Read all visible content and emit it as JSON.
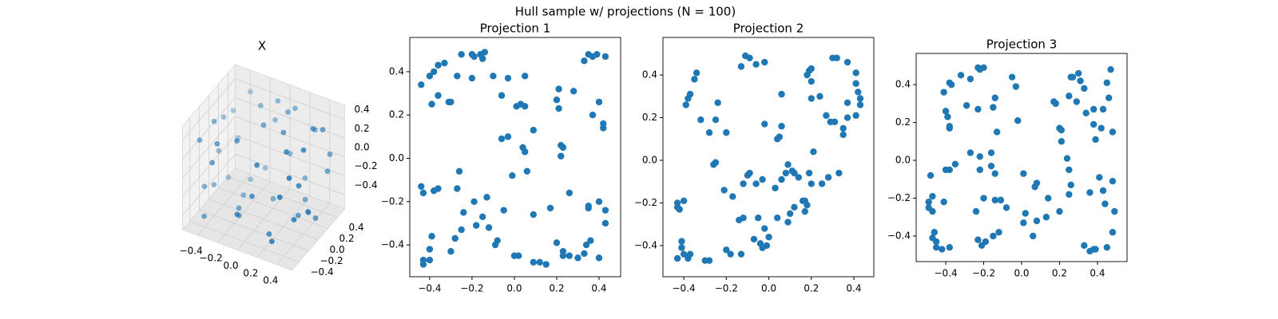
{
  "title": "Hull sample w/ projections (N = 100)",
  "chart_data": [
    {
      "type": "scatter3d",
      "title": "X",
      "color": "#1f77b4",
      "x": [
        -0.45,
        0.45,
        0.2,
        -0.3,
        0.1,
        -0.2,
        0.45,
        -0.45,
        0.3,
        -0.1,
        0.0,
        0.3,
        -0.45,
        0.45,
        -0.35,
        0.15,
        0.4,
        -0.4,
        0.25,
        -0.25,
        0.45,
        -0.45,
        0.05,
        -0.05,
        0.35,
        -0.15,
        0.45,
        -0.45,
        0.2,
        -0.3,
        0.1,
        -0.2,
        0.45,
        -0.45,
        0.0,
        0.3,
        -0.1,
        0.45,
        -0.38,
        0.38,
        -0.45,
        0.2,
        -0.05,
        0.45,
        -0.25,
        0.1,
        -0.45,
        0.35,
        -0.15,
        0.45
      ],
      "y": [
        0.1,
        -0.2,
        0.45,
        -0.45,
        0.3,
        -0.1,
        0.3,
        -0.3,
        -0.45,
        0.45,
        0.0,
        0.1,
        0.4,
        0.0,
        0.45,
        -0.45,
        0.2,
        -0.2,
        0.35,
        0.1,
        -0.4,
        0.0,
        0.45,
        -0.45,
        -0.25,
        0.25,
        0.4,
        -0.4,
        -0.3,
        0.35,
        -0.45,
        0.45,
        -0.1,
        0.2,
        0.2,
        0.45,
        -0.35,
        0.15,
        -0.45,
        -0.45,
        0.3,
        0.0,
        0.4,
        -0.3,
        -0.45,
        0.45,
        -0.1,
        0.2,
        -0.2,
        0.45
      ],
      "z": [
        0.3,
        0.1,
        -0.3,
        0.2,
        0.45,
        -0.45,
        0.4,
        -0.2,
        -0.4,
        0.2,
        0.45,
        -0.45,
        -0.1,
        -0.3,
        0.4,
        0.35,
        0.45,
        0.45,
        -0.45,
        -0.45,
        0.3,
        0.0,
        -0.1,
        -0.25,
        0.45,
        0.45,
        -0.1,
        0.35,
        -0.45,
        -0.45,
        0.0,
        -0.35,
        0.42,
        -0.4,
        -0.45,
        0.25,
        0.45,
        -0.45,
        -0.4,
        0.1,
        0.25,
        0.45,
        0.45,
        -0.2,
        0.42,
        0.4,
        -0.3,
        -0.45,
        -0.45,
        0.05
      ],
      "xlim": [
        -0.55,
        0.55
      ],
      "ylim": [
        -0.55,
        0.55
      ],
      "zlim": [
        -0.55,
        0.55
      ],
      "xticks": [
        {
          "value": -0.4,
          "label": "−0.4"
        },
        {
          "value": -0.2,
          "label": "−0.2"
        },
        {
          "value": 0,
          "label": "0.0"
        },
        0.2,
        0.4
      ],
      "yticks": [
        {
          "value": -0.4,
          "label": "−0.4"
        },
        {
          "value": -0.2,
          "label": "−0.2"
        },
        {
          "value": 0,
          "label": "0.0"
        },
        0.2,
        0.4
      ],
      "zticks": [
        {
          "value": -0.4,
          "label": "−0.4"
        },
        {
          "value": -0.2,
          "label": "−0.2"
        },
        {
          "value": 0,
          "label": "0.0"
        },
        0.2,
        0.4
      ]
    },
    {
      "type": "scatter",
      "title": "Projection 1",
      "color": "#1f77b4",
      "x": [
        -0.44,
        -0.4,
        -0.38,
        -0.36,
        -0.33,
        -0.39,
        -0.36,
        -0.31,
        -0.3,
        -0.27,
        -0.25,
        -0.2,
        -0.19,
        -0.16,
        -0.14,
        -0.15,
        -0.2,
        -0.1,
        -0.06,
        -0.03,
        0.05,
        0.03,
        0.01,
        0.05,
        0.09,
        0.04,
        0.05,
        -0.03,
        -0.06,
        -0.01,
        0.06,
        0.2,
        0.21,
        0.21,
        0.22,
        0.23,
        0.22,
        0.28,
        0.35,
        0.33,
        0.37,
        0.39,
        0.43,
        0.37,
        0.4,
        0.42,
        0.42,
        -0.44,
        -0.43,
        -0.38,
        -0.36,
        -0.27,
        -0.24,
        -0.19,
        -0.15,
        -0.05,
        -0.13,
        -0.12,
        -0.18,
        -0.25,
        -0.28,
        -0.26,
        -0.39,
        -0.4,
        -0.43,
        -0.43,
        -0.4,
        -0.3,
        -0.08,
        -0.09,
        0.0,
        0.02,
        0.09,
        0.12,
        0.15,
        0.09,
        0.2,
        0.17,
        0.26,
        0.26,
        0.3,
        0.34,
        0.36,
        0.35,
        0.35,
        0.4,
        0.43,
        0.43,
        0.4,
        0.33,
        0.23,
        0.23
      ],
      "y": [
        0.34,
        0.38,
        0.4,
        0.43,
        0.44,
        0.25,
        0.29,
        0.26,
        0.26,
        0.38,
        0.48,
        0.48,
        0.47,
        0.48,
        0.49,
        0.46,
        0.37,
        0.38,
        0.29,
        0.37,
        0.38,
        0.25,
        0.24,
        0.24,
        0.13,
        0.05,
        0.03,
        0.1,
        0.09,
        -0.08,
        -0.06,
        0.27,
        0.23,
        0.32,
        0.06,
        0.05,
        0.01,
        0.31,
        0.48,
        0.45,
        0.47,
        0.48,
        0.47,
        0.2,
        0.26,
        0.14,
        0.16,
        -0.13,
        -0.16,
        -0.15,
        -0.14,
        -0.14,
        -0.25,
        -0.2,
        -0.27,
        -0.24,
        -0.18,
        -0.32,
        -0.31,
        -0.33,
        -0.37,
        -0.06,
        -0.36,
        -0.42,
        -0.47,
        -0.49,
        -0.47,
        -0.43,
        -0.38,
        -0.4,
        -0.45,
        -0.45,
        -0.48,
        -0.48,
        -0.49,
        -0.26,
        -0.39,
        -0.23,
        -0.16,
        -0.45,
        -0.46,
        -0.4,
        -0.38,
        -0.22,
        -0.23,
        -0.2,
        -0.24,
        -0.3,
        -0.46,
        -0.44,
        -0.43,
        -0.45
      ],
      "xlim": [
        -0.494,
        0.502
      ],
      "ylim": [
        -0.547,
        0.558
      ],
      "xticks": [
        {
          "value": -0.4,
          "label": "−0.4"
        },
        {
          "value": -0.2,
          "label": "−0.2"
        },
        {
          "value": 0,
          "label": "0.0"
        },
        0.2,
        0.4
      ],
      "yticks": [
        {
          "value": -0.4,
          "label": "−0.4"
        },
        {
          "value": -0.2,
          "label": "−0.2"
        },
        {
          "value": 0,
          "label": "0.0"
        },
        0.2,
        0.4
      ]
    },
    {
      "type": "scatter",
      "title": "Projection 2",
      "color": "#1f77b4",
      "x": [
        -0.43,
        -0.42,
        -0.4,
        -0.43,
        -0.41,
        -0.41,
        -0.43,
        -0.4,
        -0.38,
        -0.37,
        -0.3,
        -0.28,
        -0.2,
        -0.18,
        -0.13,
        -0.07,
        -0.04,
        -0.01,
        -0.03,
        0.0,
        -0.14,
        -0.12,
        -0.05,
        -0.02,
        0.04,
        0.09,
        0.1,
        0.12,
        0.16,
        0.17,
        0.18,
        0.17,
        -0.17,
        -0.21,
        -0.12,
        -0.06,
        -0.1,
        -0.09,
        -0.03,
        0.03,
        0.06,
        0.08,
        0.09,
        0.11,
        0.12,
        0.14,
        0.19,
        0.21,
        0.2,
        0.25,
        0.28,
        0.33,
        0.35,
        0.35,
        0.37,
        0.31,
        0.29,
        0.27,
        0.24,
        0.2,
        0.2,
        0.19,
        0.2,
        0.18,
        0.3,
        0.32,
        0.37,
        0.41,
        0.41,
        0.42,
        0.43,
        0.43,
        0.41,
        0.37,
        0.06,
        -0.06,
        -0.13,
        -0.11,
        -0.09,
        -0.02,
        -0.02,
        0.06,
        0.05,
        0.04,
        -0.24,
        -0.34,
        -0.35,
        -0.37,
        -0.38,
        -0.39,
        -0.32,
        -0.25,
        -0.28,
        -0.2,
        -0.25,
        -0.26
      ],
      "y": [
        -0.2,
        -0.23,
        -0.19,
        -0.22,
        -0.38,
        -0.41,
        -0.46,
        -0.44,
        -0.46,
        -0.44,
        -0.47,
        -0.47,
        -0.42,
        -0.44,
        -0.44,
        -0.37,
        -0.39,
        -0.4,
        -0.41,
        -0.36,
        -0.28,
        -0.27,
        -0.27,
        -0.32,
        -0.27,
        -0.29,
        -0.25,
        -0.22,
        -0.19,
        -0.24,
        -0.21,
        -0.19,
        -0.17,
        -0.14,
        -0.11,
        -0.11,
        -0.07,
        -0.06,
        -0.09,
        -0.13,
        -0.09,
        -0.06,
        -0.02,
        -0.05,
        -0.06,
        -0.08,
        -0.06,
        0.04,
        -0.11,
        -0.11,
        -0.08,
        -0.06,
        0.12,
        0.15,
        0.2,
        0.18,
        0.18,
        0.21,
        0.3,
        0.29,
        0.43,
        0.42,
        0.37,
        0.4,
        0.48,
        0.48,
        0.46,
        0.41,
        0.36,
        0.32,
        0.29,
        0.26,
        0.21,
        0.27,
        0.31,
        0.45,
        0.44,
        0.49,
        0.48,
        0.46,
        0.17,
        0.16,
        0.11,
        0.1,
        0.27,
        0.41,
        0.38,
        0.31,
        0.29,
        0.26,
        0.19,
        0.19,
        0.13,
        0.13,
        -0.01,
        -0.02
      ],
      "xlim": [
        -0.498,
        0.494
      ],
      "ylim": [
        -0.546,
        0.576
      ],
      "xticks": [
        {
          "value": -0.4,
          "label": "−0.4"
        },
        {
          "value": -0.2,
          "label": "−0.2"
        },
        {
          "value": 0,
          "label": "0.0"
        },
        0.2,
        0.4
      ],
      "yticks": [
        {
          "value": -0.4,
          "label": "−0.4"
        },
        {
          "value": -0.2,
          "label": "−0.2"
        },
        {
          "value": 0,
          "label": "0.0"
        },
        0.2,
        0.4
      ]
    },
    {
      "type": "scatter",
      "title": "Projection 3",
      "color": "#1f77b4",
      "x": [
        -0.49,
        -0.49,
        -0.48,
        -0.47,
        -0.47,
        -0.47,
        -0.46,
        -0.45,
        -0.45,
        -0.42,
        -0.38,
        -0.41,
        -0.4,
        -0.38,
        -0.35,
        -0.38,
        -0.38,
        -0.39,
        -0.4,
        -0.41,
        -0.37,
        -0.38,
        -0.32,
        -0.29,
        -0.27,
        -0.23,
        -0.23,
        -0.22,
        -0.2,
        -0.15,
        -0.14,
        -0.13,
        -0.05,
        -0.03,
        -0.02,
        -0.27,
        -0.22,
        -0.16,
        -0.16,
        -0.14,
        -0.22,
        -0.2,
        -0.14,
        -0.11,
        -0.24,
        -0.23,
        -0.21,
        -0.19,
        -0.15,
        -0.08,
        -0.12,
        0.01,
        0.02,
        0.01,
        0.07,
        0.08,
        0.08,
        0.06,
        0.13,
        0.14,
        0.17,
        0.18,
        0.2,
        0.21,
        0.21,
        0.2,
        0.24,
        0.25,
        0.25,
        0.26,
        0.27,
        0.29,
        0.3,
        0.31,
        0.33,
        0.34,
        0.38,
        0.38,
        0.42,
        0.39,
        0.41,
        0.43,
        0.44,
        0.36,
        0.43,
        0.45,
        0.47,
        0.46,
        0.48,
        0.48,
        0.49,
        0.48,
        0.45,
        0.38,
        0.33,
        0.36,
        0.39,
        0.25,
        0.26
      ],
      "y": [
        -0.25,
        -0.22,
        -0.08,
        -0.27,
        -0.19,
        -0.41,
        -0.38,
        -0.43,
        -0.46,
        -0.47,
        -0.46,
        -0.22,
        -0.05,
        -0.05,
        -0.02,
        0.17,
        0.18,
        0.23,
        0.26,
        0.36,
        0.4,
        0.41,
        0.45,
        0.29,
        0.43,
        0.27,
        0.49,
        0.48,
        0.49,
        0.28,
        0.33,
        0.15,
        0.44,
        0.39,
        0.21,
        0.04,
        0.02,
        0.04,
        -0.03,
        -0.07,
        -0.05,
        -0.2,
        -0.21,
        -0.21,
        -0.27,
        -0.42,
        -0.45,
        -0.43,
        -0.4,
        -0.25,
        -0.38,
        -0.07,
        -0.28,
        -0.33,
        -0.14,
        -0.12,
        -0.32,
        -0.4,
        -0.3,
        -0.2,
        0.31,
        0.3,
        0.17,
        0.16,
        0.1,
        -0.27,
        0.01,
        -0.05,
        0.34,
        0.44,
        0.44,
        0.31,
        0.46,
        0.42,
        0.38,
        0.25,
        0.27,
        0.19,
        0.17,
        0.11,
        -0.09,
        -0.16,
        -0.23,
        -0.17,
        0.27,
        0.41,
        0.48,
        0.33,
        0.15,
        -0.11,
        -0.27,
        -0.38,
        -0.46,
        -0.47,
        -0.45,
        -0.48,
        -0.47,
        -0.18,
        -0.13
      ],
      "xlim": [
        -0.556,
        0.556
      ],
      "ylim": [
        -0.535,
        0.565
      ],
      "xticks": [
        {
          "value": -0.4,
          "label": "−0.4"
        },
        {
          "value": -0.2,
          "label": "−0.2"
        },
        {
          "value": 0,
          "label": "0.0"
        },
        0.2,
        0.4
      ],
      "yticks": [
        {
          "value": -0.4,
          "label": "−0.4"
        },
        {
          "value": -0.2,
          "label": "−0.2"
        },
        {
          "value": 0,
          "label": "0.0"
        },
        0.2,
        0.4
      ]
    }
  ]
}
